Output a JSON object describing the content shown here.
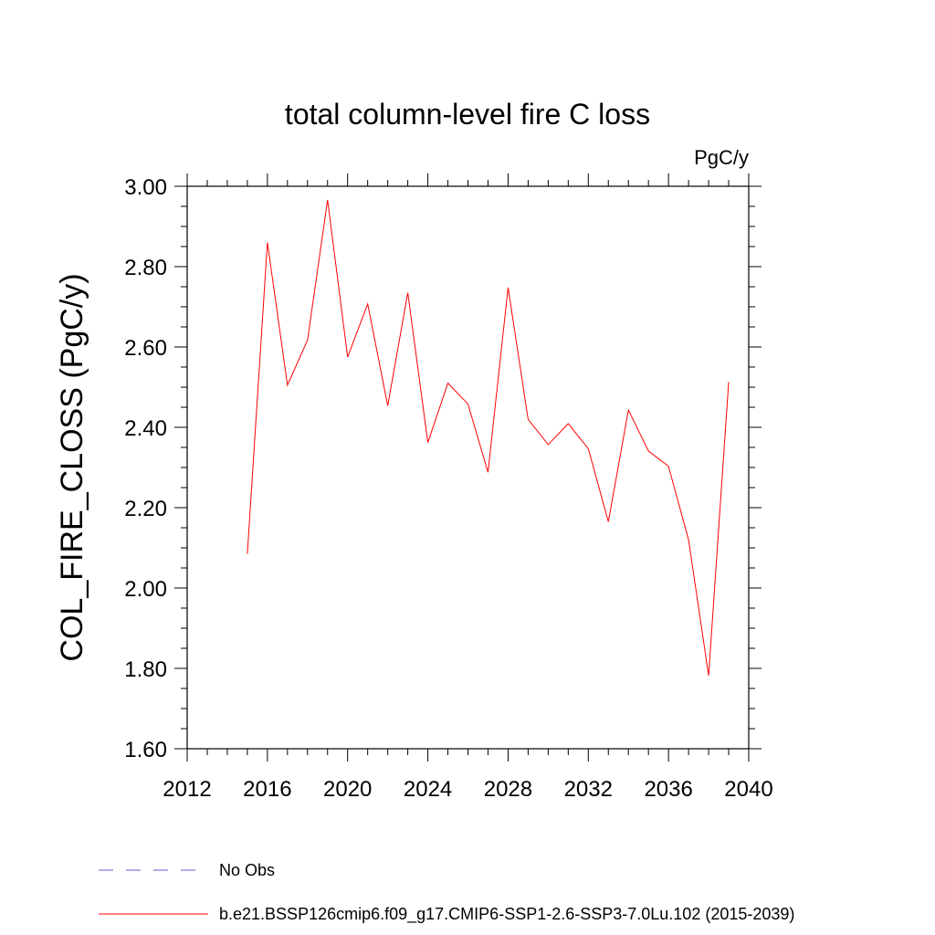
{
  "chart_data": {
    "type": "line",
    "title": "total column-level fire C loss",
    "units_label": "PgC/y",
    "ylabel": "COL_FIRE_CLOSS  (PgC/y)",
    "xlabel": "",
    "xlim": [
      2012,
      2040
    ],
    "ylim": [
      1.6,
      3.0
    ],
    "x_ticks": [
      2012,
      2016,
      2020,
      2024,
      2028,
      2032,
      2036,
      2040
    ],
    "x_tick_labels": [
      "2012",
      "2016",
      "2020",
      "2024",
      "2028",
      "2032",
      "2036",
      "2040"
    ],
    "y_ticks": [
      1.6,
      1.8,
      2.0,
      2.2,
      2.4,
      2.6,
      2.8,
      3.0
    ],
    "y_tick_labels": [
      "1.60",
      "1.80",
      "2.00",
      "2.20",
      "2.40",
      "2.60",
      "2.80",
      "3.00"
    ],
    "grid": false,
    "legend_position": "bottom",
    "legend": [
      {
        "label": "No Obs",
        "style": "dashed",
        "color": "#6a5acd"
      },
      {
        "label": "b.e21.BSSP126cmip6.f09_g17.CMIP6-SSP1-2.6-SSP3-7.0Lu.102 (2015-2039)",
        "style": "solid",
        "color": "#ff0000"
      }
    ],
    "series": [
      {
        "color": "#ff0000",
        "x": [
          2015,
          2016,
          2017,
          2018,
          2019,
          2020,
          2021,
          2022,
          2023,
          2024,
          2025,
          2026,
          2027,
          2028,
          2029,
          2030,
          2031,
          2032,
          2033,
          2034,
          2035,
          2036,
          2037,
          2038,
          2039
        ],
        "values": [
          2.085,
          2.86,
          2.505,
          2.617,
          2.966,
          2.575,
          2.707,
          2.454,
          2.735,
          2.362,
          2.51,
          2.458,
          2.288,
          2.748,
          2.42,
          2.357,
          2.409,
          2.347,
          2.165,
          2.443,
          2.341,
          2.303,
          2.12,
          1.782,
          2.513
        ]
      }
    ]
  }
}
